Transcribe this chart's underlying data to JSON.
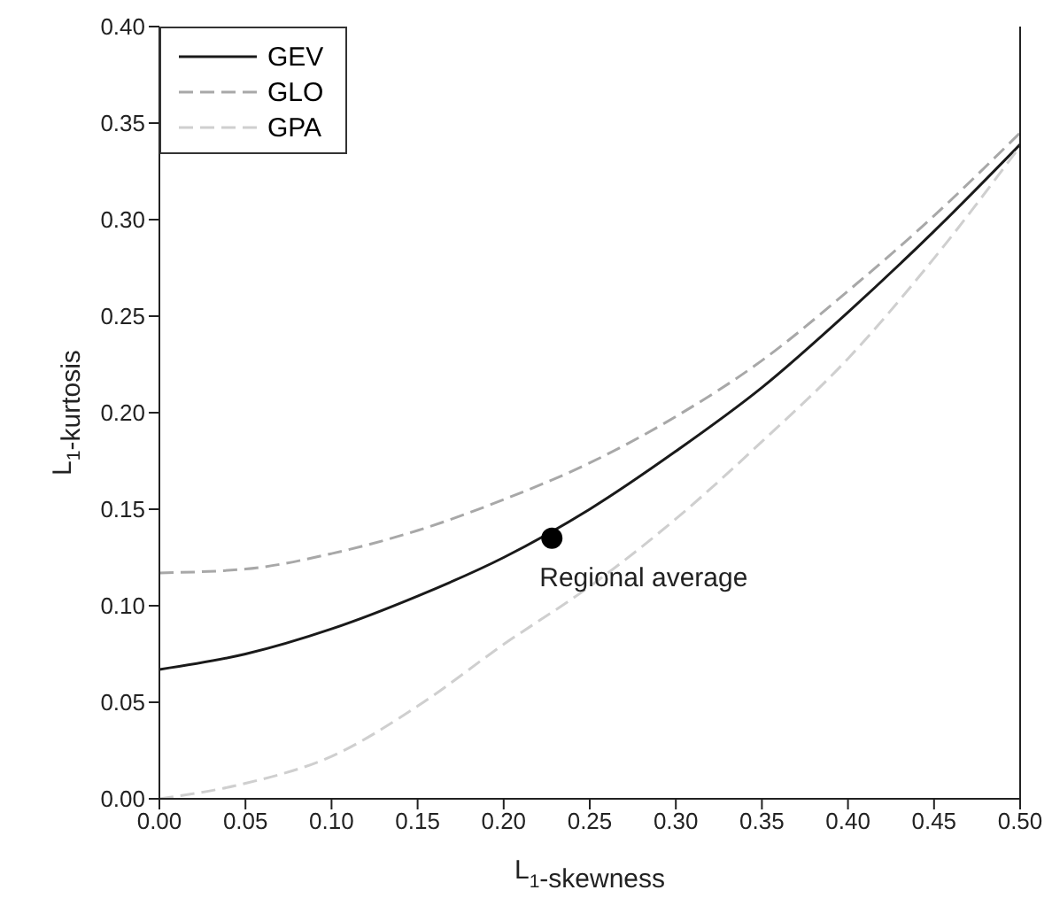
{
  "chart_data": {
    "type": "line",
    "xlabel": "L$_{1}$-skewness",
    "ylabel": "L$_{1}$-kurtosis",
    "xlim": [
      0,
      0.5
    ],
    "ylim": [
      0,
      0.4
    ],
    "xticks": [
      {
        "value": 0,
        "label": "0.00"
      },
      {
        "value": 0.05,
        "label": "0.05"
      },
      {
        "value": 0.1,
        "label": "0.10"
      },
      {
        "value": 0.15,
        "label": "0.15"
      },
      {
        "value": 0.2,
        "label": "0.20"
      },
      {
        "value": 0.25,
        "label": "0.25"
      },
      {
        "value": 0.3,
        "label": "0.30"
      },
      {
        "value": 0.35,
        "label": "0.35"
      },
      {
        "value": 0.4,
        "label": "0.40"
      },
      {
        "value": 0.45,
        "label": "0.45"
      },
      {
        "value": 0.5,
        "label": "0.50"
      }
    ],
    "yticks": [
      {
        "value": 0,
        "label": "0.00"
      },
      {
        "value": 0.05,
        "label": "0.05"
      },
      {
        "value": 0.1,
        "label": "0.10"
      },
      {
        "value": 0.15,
        "label": "0.15"
      },
      {
        "value": 0.2,
        "label": "0.20"
      },
      {
        "value": 0.25,
        "label": "0.25"
      },
      {
        "value": 0.3,
        "label": "0.30"
      },
      {
        "value": 0.35,
        "label": "0.35"
      },
      {
        "value": 0.4,
        "label": "0.40"
      }
    ],
    "x": [
      0,
      0.05,
      0.1,
      0.15,
      0.2,
      0.25,
      0.3,
      0.35,
      0.4,
      0.45,
      0.5
    ],
    "series": [
      {
        "name": "GEV",
        "color": "#1a1a1a",
        "line_style": "solid",
        "values": [
          0.067,
          0.075,
          0.088,
          0.105,
          0.125,
          0.15,
          0.18,
          0.213,
          0.252,
          0.294,
          0.339
        ]
      },
      {
        "name": "GLO",
        "color": "#a8a8a8",
        "line_style": "dashed",
        "values": [
          0.117,
          0.119,
          0.127,
          0.139,
          0.155,
          0.174,
          0.198,
          0.227,
          0.263,
          0.302,
          0.345
        ]
      },
      {
        "name": "GPA",
        "color": "#cfcfcf",
        "line_style": "dashed",
        "values": [
          0.0,
          0.008,
          0.022,
          0.048,
          0.08,
          0.11,
          0.145,
          0.185,
          0.228,
          0.28,
          0.338
        ]
      },
      {
        "type": "scatter",
        "color": "#000000",
        "marker": "circle",
        "x": [
          0.228
        ],
        "values": [
          0.135
        ]
      }
    ],
    "annotations": [
      {
        "text": "Regional average",
        "x": 0.228,
        "y": 0.135
      }
    ],
    "marker": "none",
    "grid": false,
    "legend": "top left"
  }
}
